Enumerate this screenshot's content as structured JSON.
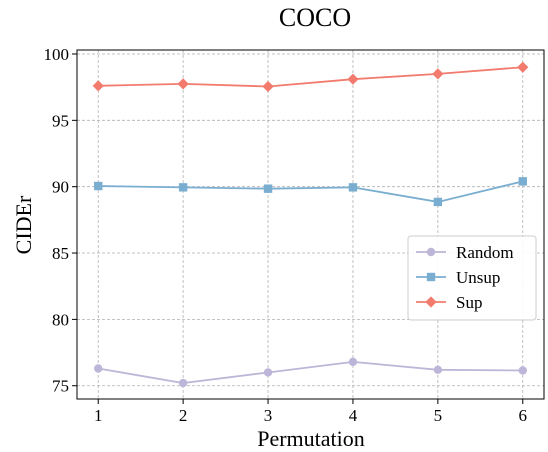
{
  "chart_data": {
    "type": "line",
    "title": "COCO",
    "xlabel": "Permutation",
    "ylabel": "CIDEr",
    "x": [
      1,
      2,
      3,
      4,
      5,
      6
    ],
    "xlim": [
      0.75,
      6.25
    ],
    "ylim": [
      74,
      100.3
    ],
    "xticks": [
      "1",
      "2",
      "3",
      "4",
      "5",
      "6"
    ],
    "yticks": [
      "75",
      "80",
      "85",
      "90",
      "95",
      "100"
    ],
    "grid": true,
    "legend_position": "center-right",
    "series": [
      {
        "name": "Random",
        "color": "#bdb6d8",
        "marker": "circle",
        "values": [
          76.3,
          75.2,
          76.0,
          76.8,
          76.2,
          76.15
        ]
      },
      {
        "name": "Unsup",
        "color": "#7aaed1",
        "marker": "square",
        "values": [
          90.05,
          89.95,
          89.85,
          89.95,
          88.85,
          90.4
        ]
      },
      {
        "name": "Sup",
        "color": "#f27b6e",
        "marker": "diamond",
        "values": [
          97.6,
          97.75,
          97.55,
          98.1,
          98.5,
          99.0
        ]
      }
    ]
  }
}
